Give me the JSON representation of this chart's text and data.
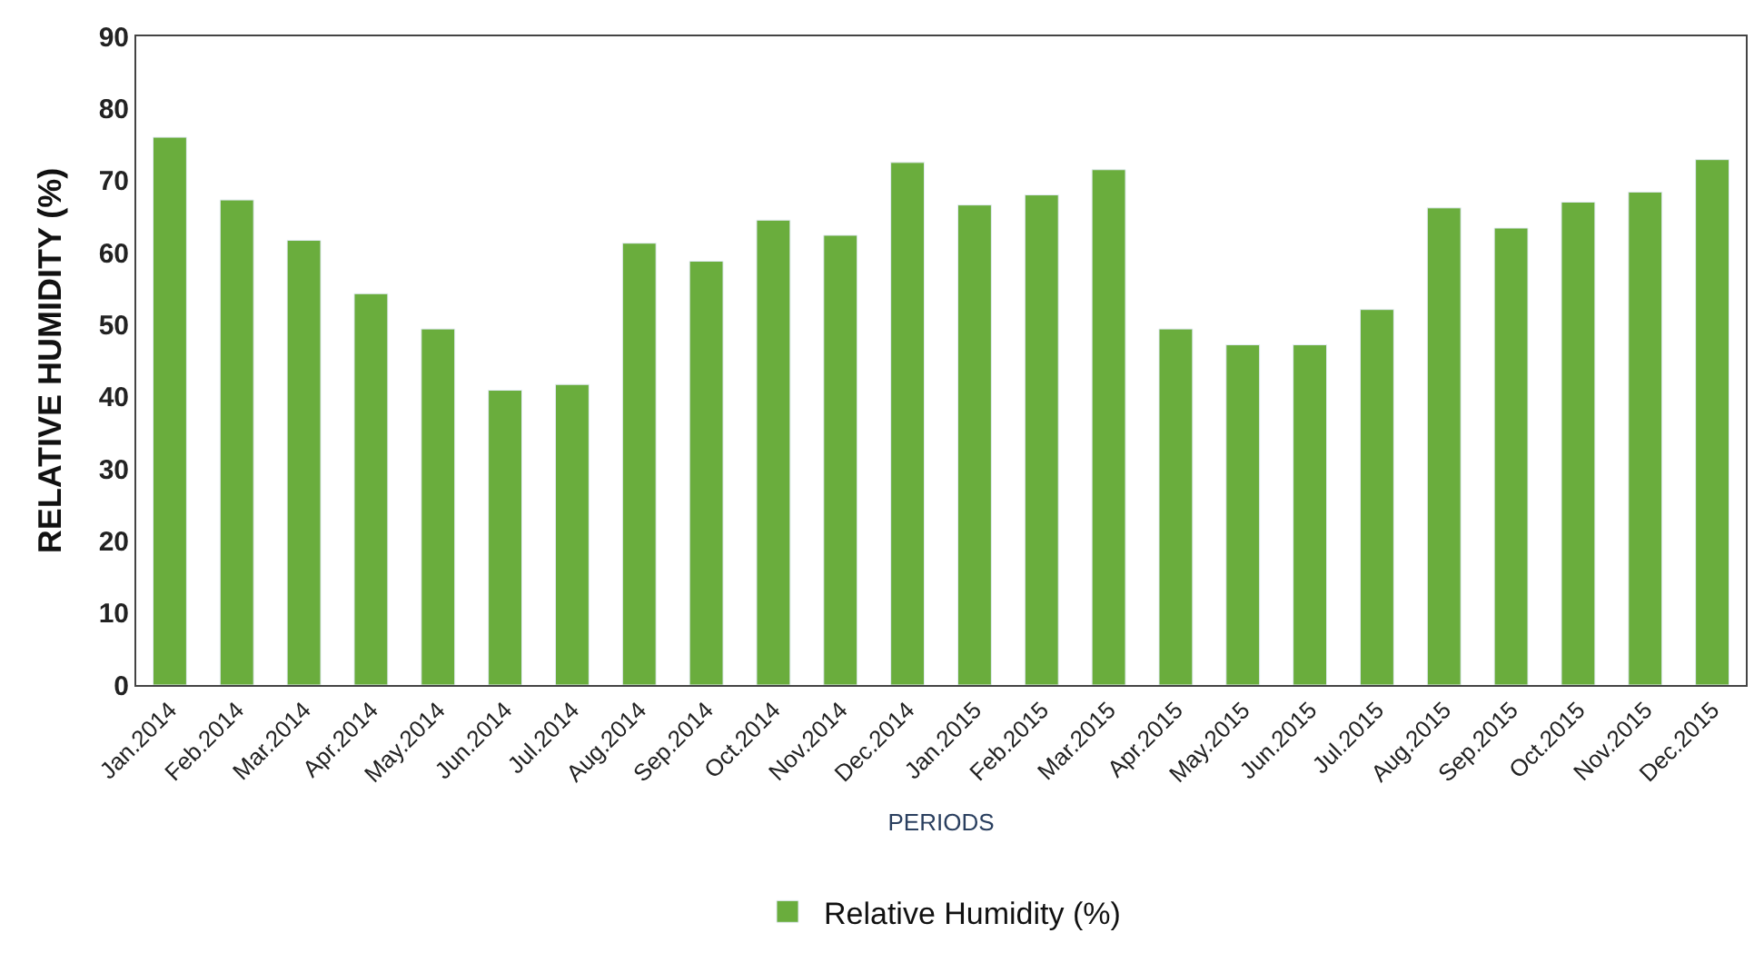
{
  "chart_data": {
    "type": "bar",
    "xlabel": "PERIODS",
    "ylabel": "RELATIVE HUMIDITY (%)",
    "categories": [
      "Jan.2014",
      "Feb.2014",
      "Mar.2014",
      "Apr.2014",
      "May.2014",
      "Jun.2014",
      "Jul.2014",
      "Aug.2014",
      "Sep.2014",
      "Oct.2014",
      "Nov.2014",
      "Dec.2014",
      "Jan.2015",
      "Feb.2015",
      "Mar.2015",
      "Apr.2015",
      "May.2015",
      "Jun.2015",
      "Jul.2015",
      "Aug.2015",
      "Sep.2015",
      "Oct.2015",
      "Nov.2015",
      "Dec.2015"
    ],
    "series": [
      {
        "name": "Relative Humidity (%)",
        "color": "#6aad3d",
        "values": [
          76,
          67.3,
          61.7,
          54.3,
          49.4,
          40.9,
          41.7,
          61.3,
          58.8,
          64.5,
          62.4,
          72.5,
          66.6,
          68,
          71.5,
          49.4,
          47.2,
          47.2,
          52.1,
          66.2,
          63.4,
          67,
          68.4,
          72.9
        ]
      }
    ],
    "ylim": [
      0,
      90
    ],
    "yticks": [
      0,
      10,
      20,
      30,
      40,
      50,
      60,
      70,
      80,
      90
    ],
    "legend": "bottom"
  }
}
